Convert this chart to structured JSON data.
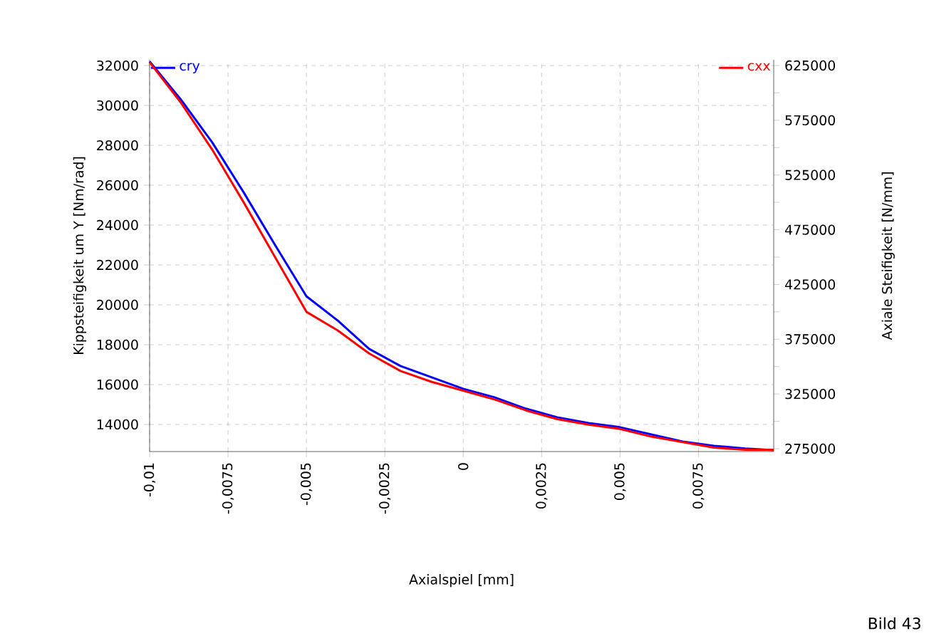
{
  "chart_data": {
    "type": "line",
    "xlabel": "Axialspiel [mm]",
    "ylabel": "Kippsteifigkeit um Y [Nm/rad]",
    "y2label": "Axiale Steifigkeit [N/mm]",
    "x": [
      -0.01,
      -0.009,
      -0.008,
      -0.007,
      -0.006,
      -0.005,
      -0.004,
      -0.003,
      -0.002,
      -0.001,
      0,
      0.001,
      0.002,
      0.003,
      0.004,
      0.005,
      0.006,
      0.007,
      0.008,
      0.009,
      0.0099
    ],
    "series": [
      {
        "name": "cry",
        "color": "#0000ff",
        "axis": "y",
        "values": [
          32210,
          30290,
          28140,
          25640,
          23000,
          20430,
          19210,
          17790,
          16930,
          16360,
          15790,
          15360,
          14790,
          14360,
          14070,
          13860,
          13500,
          13140,
          12930,
          12790,
          12710
        ]
      },
      {
        "name": "cxx",
        "color": "#ff0000",
        "axis": "y2",
        "values": [
          628000,
          591000,
          548000,
          500000,
          450000,
          400000,
          383000,
          362000,
          346000,
          336000,
          328000,
          320000,
          310000,
          302000,
          297000,
          293000,
          286000,
          281000,
          276000,
          274000,
          274000
        ]
      }
    ],
    "xlim": [
      -0.01,
      0.0099
    ],
    "xticks": [
      {
        "value": -0.01,
        "label": "-0,01"
      },
      {
        "value": -0.0075,
        "label": "-0,0075"
      },
      {
        "value": -0.005,
        "label": "-0,005"
      },
      {
        "value": -0.0025,
        "label": "-0,0025"
      },
      0,
      {
        "value": 0.0025,
        "label": "0,0025"
      },
      {
        "value": 0.005,
        "label": "0,005"
      },
      {
        "value": 0.0075,
        "label": "0,0075"
      }
    ],
    "ylim": [
      12640,
      32290
    ],
    "yticks": [
      14000,
      16000,
      18000,
      20000,
      22000,
      24000,
      26000,
      28000,
      30000,
      32000
    ],
    "y2lim": [
      272400,
      630200
    ],
    "y2ticks": [
      275000,
      {
        "value": 300000,
        "label": null
      },
      325000,
      {
        "value": 350000,
        "label": null
      },
      375000,
      {
        "value": 400000,
        "label": null
      },
      425000,
      {
        "value": 450000,
        "label": null
      },
      475000,
      {
        "value": 500000,
        "label": null
      },
      525000,
      {
        "value": 550000,
        "label": null
      },
      575000,
      {
        "value": 600000,
        "label": null
      },
      625000
    ],
    "grid": true,
    "legend": "top",
    "line_style": "solid",
    "annotations": [
      "Bild 43"
    ]
  }
}
